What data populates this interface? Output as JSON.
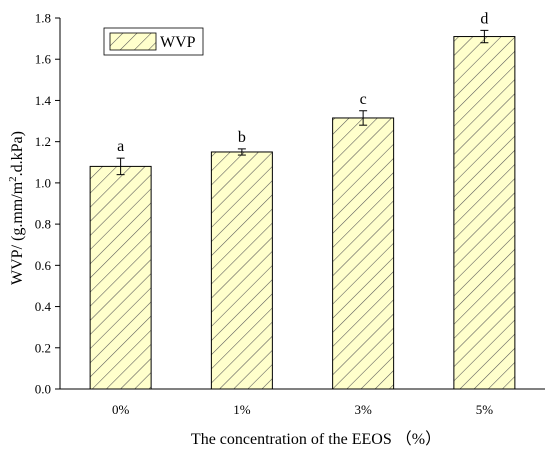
{
  "chart_data": {
    "type": "bar",
    "categories": [
      "0%",
      "1%",
      "3%",
      "5%"
    ],
    "values": [
      1.08,
      1.15,
      1.315,
      1.71
    ],
    "errors": [
      0.04,
      0.015,
      0.035,
      0.03
    ],
    "labels": [
      "a",
      "b",
      "c",
      "d"
    ],
    "series": [
      {
        "name": "WVP",
        "values": [
          1.08,
          1.15,
          1.315,
          1.71
        ]
      }
    ],
    "xlabel": "The concentration of the EEOS （%）",
    "ylabel_main": "WVP/ (g.mm/m",
    "ylabel_sup": "2",
    "ylabel_tail": ".d.kPa)",
    "ylim": [
      0,
      1.8
    ],
    "yticks": [
      "0.0",
      "0.2",
      "0.4",
      "0.6",
      "0.8",
      "1.0",
      "1.2",
      "1.4",
      "1.6",
      "1.8"
    ],
    "legend": "top-left",
    "grid": false,
    "colors": {
      "bar_fill": "#ffffcc",
      "hatch": "#555555",
      "edge": "#000000"
    }
  }
}
